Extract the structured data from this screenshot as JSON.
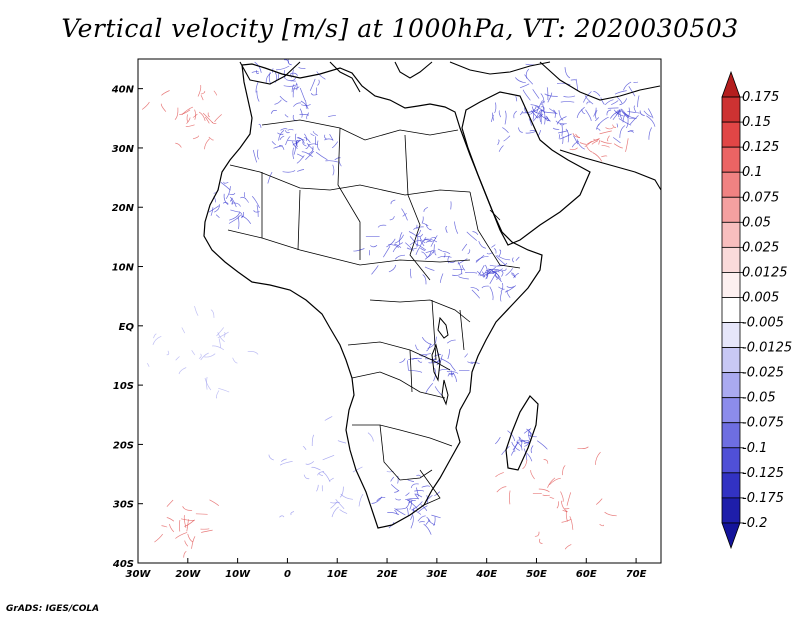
{
  "title": "Vertical velocity [m/s] at 1000hPa, VT: 2020030503",
  "credit": "GrADS: IGES/COLA",
  "map": {
    "lon_range": [
      -30,
      75
    ],
    "lat_range": [
      -40,
      45
    ],
    "x_ticks": [
      "30W",
      "20W",
      "10W",
      "0",
      "10E",
      "20E",
      "30E",
      "40E",
      "50E",
      "60E",
      "70E"
    ],
    "y_ticks": [
      "40N",
      "30N",
      "20N",
      "10N",
      "EQ",
      "10S",
      "20S",
      "30S",
      "40S"
    ],
    "colors": {
      "negative": "#3c3cd2",
      "positive": "#e05050",
      "coast": "#000000"
    }
  },
  "colorbar": {
    "labels": [
      "0.175",
      "0.15",
      "0.125",
      "0.1",
      "0.075",
      "0.05",
      "0.025",
      "0.0125",
      "0.005",
      "-0.005",
      "-0.0125",
      "-0.025",
      "-0.05",
      "-0.075",
      "-0.1",
      "-0.125",
      "-0.175",
      "-0.2"
    ],
    "colors": [
      "#b41e1e",
      "#cd3232",
      "#e14646",
      "#eb6464",
      "#f08282",
      "#f5a0a0",
      "#f8bebe",
      "#fadada",
      "#fdf0f0",
      "#ffffff",
      "#e6e6fa",
      "#c8c8f5",
      "#aaaaf0",
      "#8c8ceb",
      "#6e6ee1",
      "#5050d7",
      "#3232c3",
      "#1e1eaa",
      "#14149b"
    ]
  }
}
